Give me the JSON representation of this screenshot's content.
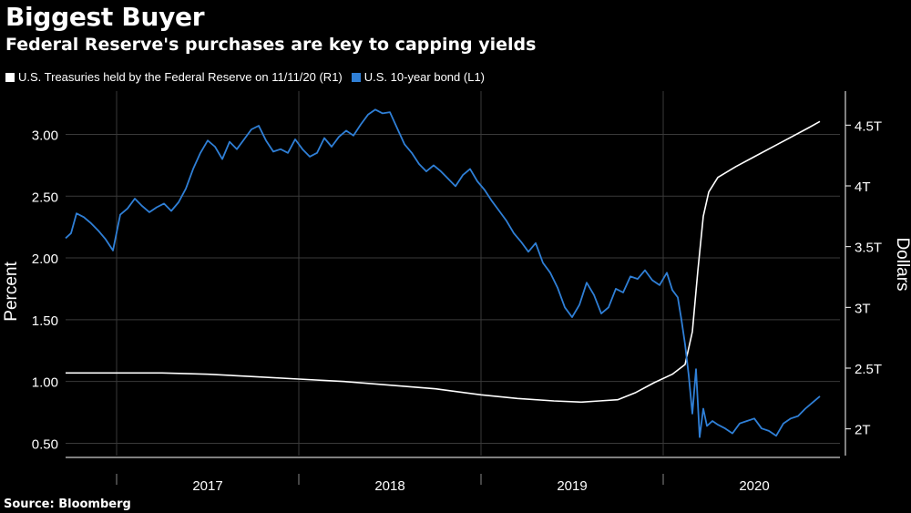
{
  "title": "Biggest Buyer",
  "subtitle": "Federal Reserve's purchases are key to capping yields",
  "source": "Source: Bloomberg",
  "colors": {
    "background": "#000000",
    "fed_series": "#ffffff",
    "bond_series": "#2f7fd6",
    "grid": "#3a3a3a"
  },
  "chart_data": {
    "type": "line",
    "title": "Biggest Buyer",
    "subtitle": "Federal Reserve's purchases are key to capping yields",
    "ylabel_left": "Percent",
    "ylabel_right": "Dollars",
    "ylim_left": [
      0.4,
      3.35
    ],
    "ylim_right": [
      1.78,
      4.78
    ],
    "xlim": [
      2016.72,
      2020.97
    ],
    "left_ticks": [
      "0.50",
      "1.00",
      "1.50",
      "2.00",
      "2.50",
      "3.00"
    ],
    "left_tick_values": [
      0.5,
      1.0,
      1.5,
      2.0,
      2.5,
      3.0
    ],
    "right_ticks": [
      "2T",
      "2.5T",
      "3T",
      "3.5T",
      "4T",
      "4.5T"
    ],
    "right_tick_values": [
      2.0,
      2.5,
      3.0,
      3.5,
      4.0,
      4.5
    ],
    "x_labels": [
      "2017",
      "2018",
      "2019",
      "2020"
    ],
    "x_label_positions": [
      2017.5,
      2018.5,
      2019.5,
      2020.5
    ],
    "year_boundaries": [
      2017.0,
      2018.0,
      2019.0,
      2020.0
    ],
    "series": [
      {
        "name": "U.S. Treasuries held by the Federal Reserve on 11/11/20 (R1)",
        "axis": "right",
        "unit": "trillion dollars",
        "x": [
          2016.72,
          2017.0,
          2017.25,
          2017.5,
          2017.75,
          2018.0,
          2018.25,
          2018.5,
          2018.75,
          2019.0,
          2019.2,
          2019.4,
          2019.55,
          2019.65,
          2019.75,
          2019.85,
          2019.95,
          2020.05,
          2020.12,
          2020.16,
          2020.19,
          2020.22,
          2020.25,
          2020.3,
          2020.4,
          2020.5,
          2020.6,
          2020.7,
          2020.8,
          2020.86
        ],
        "values": [
          2.46,
          2.46,
          2.46,
          2.45,
          2.43,
          2.41,
          2.39,
          2.36,
          2.33,
          2.28,
          2.25,
          2.23,
          2.22,
          2.23,
          2.24,
          2.3,
          2.38,
          2.45,
          2.53,
          2.8,
          3.3,
          3.75,
          3.95,
          4.07,
          4.16,
          4.24,
          4.32,
          4.4,
          4.48,
          4.53
        ]
      },
      {
        "name": "U.S. 10-year bond (L1)",
        "axis": "left",
        "unit": "percent",
        "x": [
          2016.72,
          2016.75,
          2016.78,
          2016.82,
          2016.86,
          2016.9,
          2016.94,
          2016.98,
          2017.02,
          2017.06,
          2017.1,
          2017.14,
          2017.18,
          2017.22,
          2017.26,
          2017.3,
          2017.34,
          2017.38,
          2017.42,
          2017.46,
          2017.5,
          2017.54,
          2017.58,
          2017.62,
          2017.66,
          2017.7,
          2017.74,
          2017.78,
          2017.82,
          2017.86,
          2017.9,
          2017.94,
          2017.98,
          2018.02,
          2018.06,
          2018.1,
          2018.14,
          2018.18,
          2018.22,
          2018.26,
          2018.3,
          2018.34,
          2018.38,
          2018.42,
          2018.46,
          2018.5,
          2018.54,
          2018.58,
          2018.62,
          2018.66,
          2018.7,
          2018.74,
          2018.78,
          2018.82,
          2018.86,
          2018.9,
          2018.94,
          2018.98,
          2019.02,
          2019.06,
          2019.1,
          2019.14,
          2019.18,
          2019.22,
          2019.26,
          2019.3,
          2019.34,
          2019.38,
          2019.42,
          2019.46,
          2019.5,
          2019.54,
          2019.58,
          2019.62,
          2019.66,
          2019.7,
          2019.74,
          2019.78,
          2019.82,
          2019.86,
          2019.9,
          2019.94,
          2019.98,
          2020.02,
          2020.05,
          2020.08,
          2020.1,
          2020.12,
          2020.14,
          2020.16,
          2020.18,
          2020.2,
          2020.22,
          2020.24,
          2020.27,
          2020.3,
          2020.34,
          2020.38,
          2020.42,
          2020.46,
          2020.5,
          2020.54,
          2020.58,
          2020.62,
          2020.66,
          2020.7,
          2020.74,
          2020.78,
          2020.82,
          2020.86
        ],
        "values": [
          2.16,
          2.2,
          2.36,
          2.33,
          2.28,
          2.22,
          2.15,
          2.06,
          2.35,
          2.4,
          2.48,
          2.42,
          2.37,
          2.41,
          2.44,
          2.38,
          2.45,
          2.56,
          2.72,
          2.85,
          2.95,
          2.9,
          2.8,
          2.94,
          2.88,
          2.96,
          3.04,
          3.07,
          2.95,
          2.86,
          2.88,
          2.85,
          2.96,
          2.88,
          2.82,
          2.85,
          2.97,
          2.9,
          2.98,
          3.03,
          2.99,
          3.08,
          3.16,
          3.2,
          3.17,
          3.18,
          3.05,
          2.92,
          2.85,
          2.76,
          2.7,
          2.75,
          2.7,
          2.64,
          2.58,
          2.67,
          2.72,
          2.62,
          2.55,
          2.46,
          2.38,
          2.3,
          2.2,
          2.13,
          2.05,
          2.12,
          1.96,
          1.88,
          1.76,
          1.6,
          1.52,
          1.62,
          1.8,
          1.7,
          1.55,
          1.6,
          1.75,
          1.72,
          1.85,
          1.83,
          1.9,
          1.82,
          1.78,
          1.88,
          1.74,
          1.68,
          1.5,
          1.3,
          1.05,
          0.74,
          1.1,
          0.55,
          0.78,
          0.64,
          0.68,
          0.65,
          0.62,
          0.58,
          0.66,
          0.68,
          0.7,
          0.62,
          0.6,
          0.56,
          0.66,
          0.7,
          0.72,
          0.78,
          0.83,
          0.88
        ]
      }
    ]
  }
}
